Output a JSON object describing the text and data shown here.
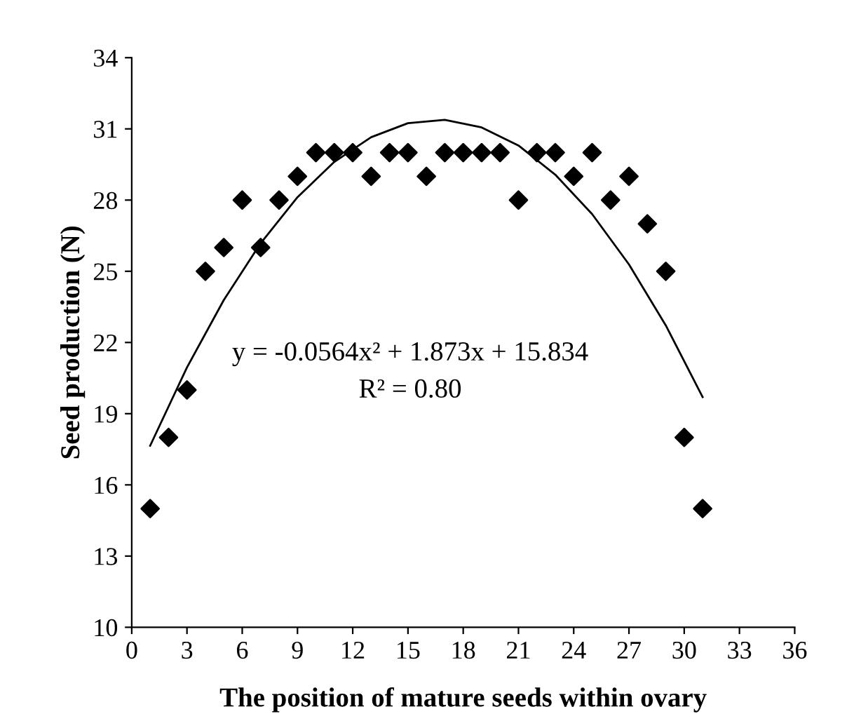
{
  "chart_data": {
    "type": "scatter",
    "xlabel": "The position of mature seeds within ovary",
    "ylabel": "Seed production (N)",
    "xlim": [
      0,
      36
    ],
    "xticks": [
      0,
      3,
      6,
      9,
      12,
      15,
      18,
      21,
      24,
      27,
      30,
      33,
      36
    ],
    "ylim": [
      10,
      34
    ],
    "yticks": [
      10,
      13,
      16,
      19,
      22,
      25,
      28,
      31,
      34
    ],
    "grid": false,
    "legend": false,
    "marker": "diamond",
    "annotations": [
      "y = -0.0564x² + 1.873x + 15.834",
      "R² = 0.80"
    ],
    "series": [
      {
        "color": "#000000",
        "x": [
          1,
          2,
          3,
          4,
          5,
          6,
          7,
          8,
          9,
          10,
          11,
          12,
          13,
          14,
          15,
          16,
          17,
          18,
          19,
          20,
          21,
          22,
          23,
          24,
          25,
          26,
          27,
          28,
          29,
          30,
          31
        ],
        "values": [
          15,
          18,
          20,
          25,
          26,
          28,
          26,
          28,
          29,
          30,
          30,
          30,
          29,
          30,
          30,
          29,
          30,
          30,
          30,
          30,
          28,
          30,
          30,
          29,
          30,
          28,
          29,
          27,
          25,
          18,
          15
        ]
      },
      {
        "type": "line",
        "color": "#000000",
        "line_style": "solid",
        "marker": "none",
        "x": [
          1,
          3,
          5,
          7,
          9,
          11,
          13,
          15,
          17,
          19,
          21,
          23,
          25,
          27,
          29,
          31
        ],
        "values": [
          17.65,
          20.95,
          23.79,
          26.18,
          28.12,
          29.61,
          30.65,
          31.24,
          31.38,
          31.06,
          30.3,
          29.07,
          27.41,
          25.29,
          22.72,
          19.7
        ]
      }
    ]
  }
}
